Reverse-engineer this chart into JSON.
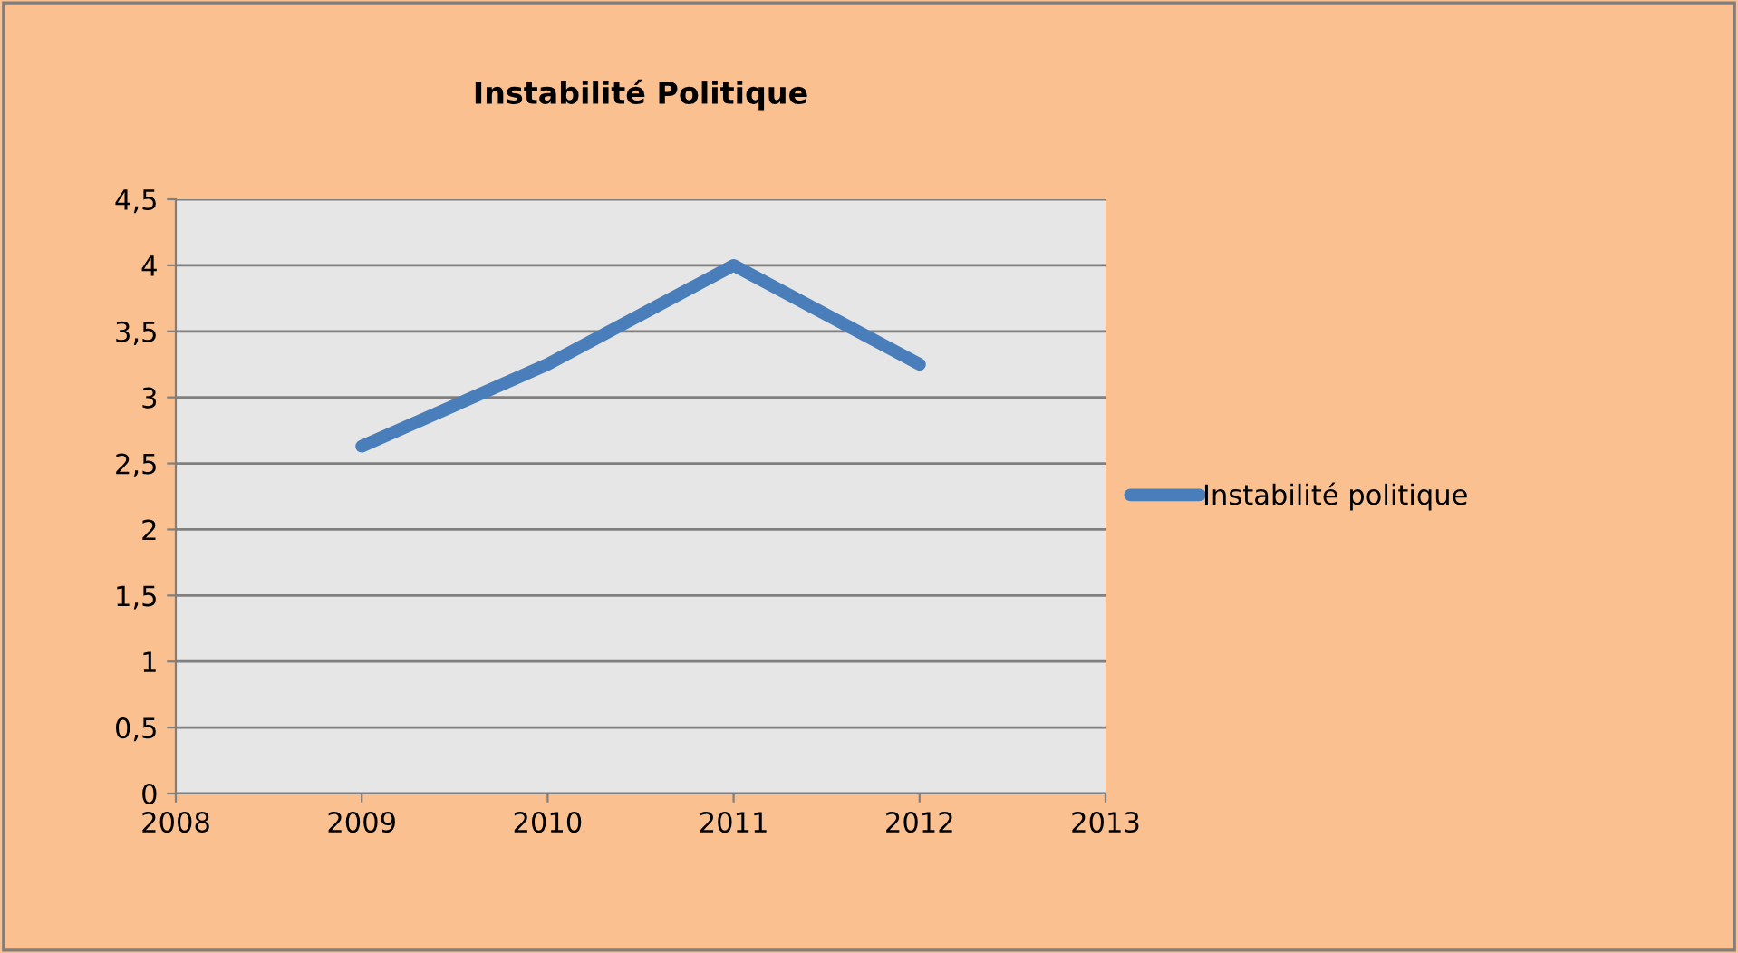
{
  "chart_data": {
    "type": "line",
    "title": "Instabilité Politique",
    "x": [
      2009,
      2010,
      2011,
      2012
    ],
    "series": [
      {
        "name": "Instabilité politique",
        "color": "#4a7ebb",
        "values": [
          2.63,
          3.25,
          4,
          3.25
        ]
      }
    ],
    "xlim": [
      2008,
      2013
    ],
    "xticks": [
      2008,
      2009,
      2010,
      2011,
      2012,
      2013
    ],
    "ylim": [
      0,
      4.5
    ],
    "yticks": [
      {
        "value": 0,
        "label": "0"
      },
      {
        "value": 0.5,
        "label": "0,5"
      },
      {
        "value": 1,
        "label": "1"
      },
      {
        "value": 1.5,
        "label": "1,5"
      },
      {
        "value": 2,
        "label": "2"
      },
      {
        "value": 2.5,
        "label": "2,5"
      },
      {
        "value": 3,
        "label": "3"
      },
      {
        "value": 3.5,
        "label": "3,5"
      },
      {
        "value": 4,
        "label": "4"
      },
      {
        "value": 4.5,
        "label": "4,5"
      }
    ],
    "grid": "y",
    "legend": "right",
    "marker": "none",
    "line_style": "solid"
  }
}
